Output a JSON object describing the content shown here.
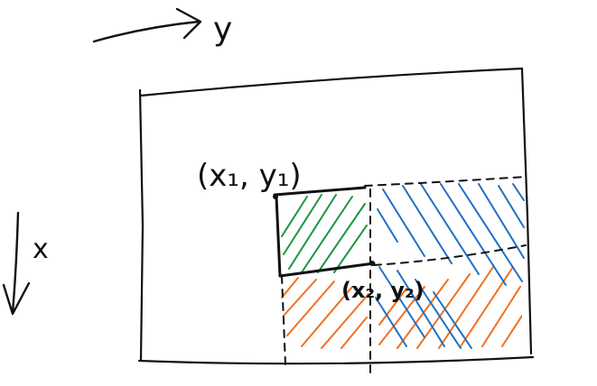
{
  "axes": {
    "y_label": "y",
    "x_label": "x"
  },
  "points": {
    "top_left": "(x₁, y₁)",
    "bottom_right": "(x₂, y₂)"
  },
  "colors": {
    "ink": "#111111",
    "green_hatch": "#1a9641",
    "orange_hatch": "#f07020",
    "blue_hatch": "#1f6fc4"
  }
}
